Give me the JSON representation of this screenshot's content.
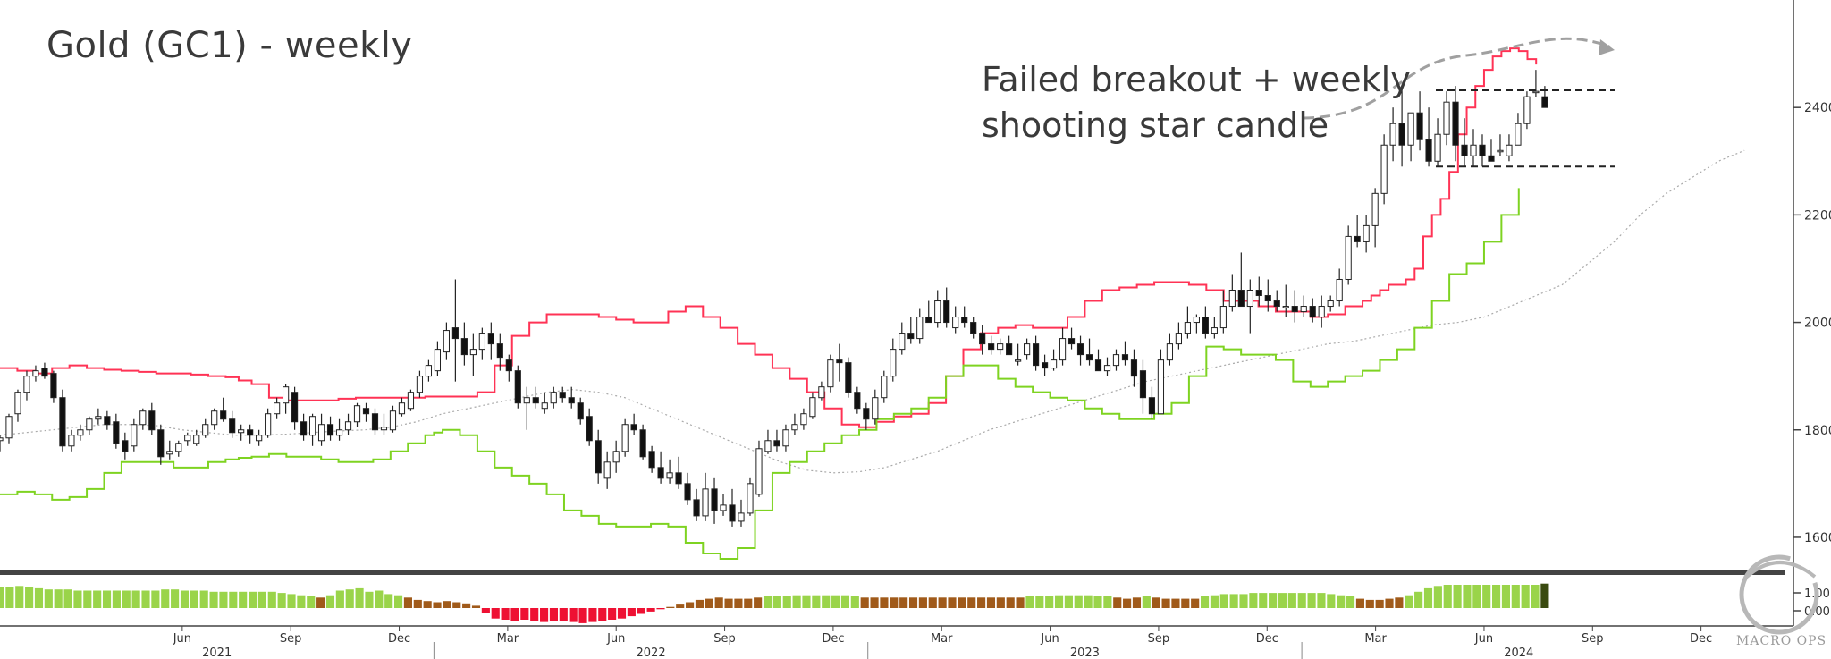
{
  "chart_data": {
    "type": "candlestick",
    "title": "Gold (GC1) - weekly",
    "annotation_lines": [
      "Failed breakout + weekly",
      "shooting star candle"
    ],
    "y_ticks": [
      1600,
      1800,
      2000,
      2200,
      2400
    ],
    "ylim": [
      1535,
      2600
    ],
    "x_ticks": [
      {
        "label": "Jun",
        "x": 4.42
      },
      {
        "label": "Sep",
        "x": 4.67
      },
      {
        "label": "Dec",
        "x": 4.92
      },
      {
        "label": "Mar",
        "x": 5.17
      },
      {
        "label": "Jun",
        "x": 5.42
      },
      {
        "label": "Sep",
        "x": 5.67
      },
      {
        "label": "Dec",
        "x": 5.92
      },
      {
        "label": "Mar",
        "x": 6.17
      },
      {
        "label": "Jun",
        "x": 6.42
      },
      {
        "label": "Sep",
        "x": 6.67
      },
      {
        "label": "Dec",
        "x": 6.92
      },
      {
        "label": "Mar",
        "x": 7.17
      },
      {
        "label": "Jun",
        "x": 7.42
      },
      {
        "label": "Sep",
        "x": 7.67
      },
      {
        "label": "Dec",
        "x": 7.92
      }
    ],
    "years": [
      {
        "label": "2021",
        "x": 4.5
      },
      {
        "label": "2022",
        "x": 5.5
      },
      {
        "label": "2023",
        "x": 6.5
      },
      {
        "label": "2024",
        "x": 7.5
      }
    ],
    "year_separators": [
      5.0,
      6.0,
      7.0
    ],
    "xlim": [
      4.0,
      8.1
    ],
    "candles_o": [
      1780,
      1785,
      1830,
      1870,
      1900,
      1915,
      1905,
      1860,
      1770,
      1790,
      1800,
      1820,
      1825,
      1815,
      1780,
      1770,
      1810,
      1835,
      1800,
      1755,
      1760,
      1780,
      1775,
      1790,
      1810,
      1835,
      1820,
      1795,
      1800,
      1780,
      1790,
      1830,
      1850,
      1870,
      1815,
      1790,
      1780,
      1810,
      1790,
      1800,
      1815,
      1840,
      1830,
      1800,
      1800,
      1830,
      1840,
      1870,
      1900,
      1910,
      1945,
      1990,
      1970,
      1940,
      1950,
      1980,
      1960,
      1930,
      1910,
      1850,
      1860,
      1840,
      1850,
      1870,
      1860,
      1850,
      1825,
      1780,
      1710,
      1740,
      1760,
      1810,
      1800,
      1760,
      1730,
      1710,
      1720,
      1700,
      1670,
      1640,
      1690,
      1650,
      1660,
      1630,
      1645,
      1680,
      1760,
      1780,
      1770,
      1800,
      1810,
      1825,
      1860,
      1880,
      1930,
      1925,
      1870,
      1840,
      1820,
      1860,
      1900,
      1950,
      1980,
      1970,
      2010,
      2000,
      2040,
      1990,
      2010,
      2000,
      1980,
      1960,
      1950,
      1960,
      1930,
      1940,
      1960,
      1925,
      1915,
      1930,
      1970,
      1960,
      1940,
      1930,
      1910,
      1920,
      1940,
      1930,
      1910,
      1860,
      1830,
      1930,
      1960,
      1980,
      2000,
      2010,
      1980,
      1990,
      2030,
      2060,
      2030,
      2060,
      2050,
      2040,
      2030,
      2030,
      2020,
      2030,
      2010,
      2030,
      2040,
      2080,
      2160,
      2150,
      2180,
      2240,
      2330,
      2370,
      2330,
      2390,
      2340,
      2300,
      2350,
      2410,
      2330,
      2310,
      2330,
      2310,
      2320,
      2310,
      2330,
      2370,
      2430,
      2420
    ],
    "candles_h": [
      1790,
      1830,
      1875,
      1910,
      1920,
      1925,
      1910,
      1875,
      1800,
      1810,
      1825,
      1840,
      1835,
      1830,
      1795,
      1820,
      1840,
      1850,
      1810,
      1780,
      1780,
      1795,
      1800,
      1820,
      1840,
      1860,
      1835,
      1810,
      1810,
      1800,
      1840,
      1860,
      1885,
      1880,
      1830,
      1830,
      1830,
      1825,
      1820,
      1830,
      1850,
      1850,
      1840,
      1830,
      1845,
      1860,
      1875,
      1910,
      1930,
      1965,
      2000,
      2080,
      2000,
      1980,
      1990,
      2000,
      1980,
      1940,
      1920,
      1880,
      1880,
      1870,
      1880,
      1880,
      1880,
      1860,
      1840,
      1800,
      1760,
      1780,
      1820,
      1830,
      1810,
      1770,
      1760,
      1745,
      1750,
      1720,
      1690,
      1720,
      1710,
      1680,
      1690,
      1670,
      1710,
      1780,
      1800,
      1800,
      1810,
      1830,
      1840,
      1870,
      1890,
      1940,
      1960,
      1935,
      1880,
      1850,
      1875,
      1910,
      1970,
      2000,
      2010,
      2025,
      2040,
      2060,
      2065,
      2030,
      2030,
      2010,
      1995,
      1975,
      1970,
      1975,
      1960,
      1970,
      1975,
      1940,
      1950,
      1990,
      1990,
      1975,
      1970,
      1950,
      1935,
      1950,
      1965,
      1950,
      1930,
      1880,
      1950,
      1980,
      2000,
      2030,
      2015,
      2030,
      2010,
      2060,
      2090,
      2130,
      2080,
      2085,
      2080,
      2060,
      2070,
      2060,
      2050,
      2045,
      2050,
      2050,
      2100,
      2180,
      2200,
      2200,
      2250,
      2350,
      2400,
      2440,
      2390,
      2430,
      2400,
      2380,
      2430,
      2440,
      2380,
      2360,
      2350,
      2340,
      2350,
      2350,
      2390,
      2430,
      2470,
      2440
    ],
    "candles_l": [
      1760,
      1775,
      1815,
      1855,
      1890,
      1895,
      1850,
      1760,
      1760,
      1780,
      1790,
      1810,
      1800,
      1765,
      1745,
      1760,
      1800,
      1790,
      1735,
      1745,
      1750,
      1770,
      1770,
      1785,
      1800,
      1815,
      1785,
      1780,
      1775,
      1770,
      1785,
      1820,
      1830,
      1800,
      1780,
      1770,
      1770,
      1780,
      1780,
      1790,
      1805,
      1815,
      1790,
      1790,
      1795,
      1825,
      1835,
      1860,
      1890,
      1900,
      1930,
      1890,
      1920,
      1900,
      1930,
      1930,
      1910,
      1890,
      1840,
      1800,
      1840,
      1830,
      1840,
      1850,
      1840,
      1810,
      1770,
      1700,
      1690,
      1720,
      1750,
      1790,
      1745,
      1720,
      1700,
      1700,
      1690,
      1660,
      1630,
      1630,
      1625,
      1640,
      1620,
      1620,
      1640,
      1675,
      1755,
      1760,
      1760,
      1790,
      1800,
      1820,
      1855,
      1870,
      1890,
      1860,
      1830,
      1800,
      1810,
      1850,
      1890,
      1940,
      1960,
      1960,
      2000,
      1990,
      1990,
      1980,
      1990,
      1970,
      1940,
      1940,
      1940,
      1950,
      1920,
      1930,
      1910,
      1900,
      1910,
      1920,
      1950,
      1920,
      1920,
      1910,
      1900,
      1910,
      1920,
      1880,
      1830,
      1820,
      1830,
      1920,
      1950,
      1970,
      1980,
      1970,
      1970,
      1980,
      2020,
      2030,
      1980,
      2030,
      2020,
      2020,
      2010,
      2000,
      2010,
      2000,
      1990,
      2020,
      2030,
      2070,
      2140,
      2130,
      2140,
      2220,
      2300,
      2290,
      2300,
      2320,
      2290,
      2290,
      2330,
      2300,
      2290,
      2290,
      2290,
      2300,
      2310,
      2300,
      2330,
      2360,
      2420,
      2400
    ],
    "candles_c": [
      1785,
      1825,
      1870,
      1900,
      1910,
      1900,
      1860,
      1770,
      1790,
      1800,
      1820,
      1825,
      1810,
      1775,
      1760,
      1810,
      1835,
      1800,
      1750,
      1760,
      1775,
      1790,
      1790,
      1810,
      1835,
      1820,
      1795,
      1800,
      1790,
      1790,
      1830,
      1850,
      1880,
      1815,
      1790,
      1825,
      1810,
      1790,
      1800,
      1815,
      1845,
      1830,
      1800,
      1805,
      1835,
      1850,
      1870,
      1900,
      1920,
      1950,
      1985,
      1970,
      1940,
      1950,
      1980,
      1960,
      1935,
      1910,
      1850,
      1860,
      1850,
      1850,
      1870,
      1860,
      1850,
      1820,
      1780,
      1720,
      1740,
      1760,
      1810,
      1800,
      1750,
      1730,
      1710,
      1720,
      1700,
      1670,
      1640,
      1690,
      1650,
      1660,
      1630,
      1645,
      1700,
      1765,
      1780,
      1770,
      1800,
      1810,
      1830,
      1860,
      1880,
      1930,
      1925,
      1870,
      1840,
      1820,
      1860,
      1900,
      1950,
      1980,
      1970,
      2010,
      2000,
      2040,
      2000,
      2010,
      2000,
      1980,
      1960,
      1950,
      1960,
      1940,
      1930,
      1960,
      1920,
      1915,
      1930,
      1970,
      1960,
      1940,
      1930,
      1910,
      1920,
      1940,
      1930,
      1900,
      1860,
      1830,
      1930,
      1960,
      1980,
      2000,
      2010,
      1980,
      1990,
      2030,
      2060,
      2030,
      2060,
      2050,
      2040,
      2030,
      2030,
      2020,
      2030,
      2010,
      2030,
      2040,
      2080,
      2160,
      2150,
      2180,
      2240,
      2330,
      2370,
      2330,
      2390,
      2340,
      2300,
      2350,
      2410,
      2330,
      2310,
      2330,
      2310,
      2300,
      2320,
      2330,
      2370,
      2420,
      2430,
      2400
    ],
    "upper_band": [
      1915,
      1910,
      1905,
      1915,
      1920,
      1915,
      1912,
      1910,
      1908,
      1905,
      1905,
      1903,
      1900,
      1898,
      1892,
      1885,
      1860,
      1855,
      1855,
      1855,
      1858,
      1860,
      1860,
      1860,
      1860,
      1862,
      1862,
      1862,
      1862,
      1870,
      1920,
      1975,
      2000,
      2015,
      2015,
      2015,
      2010,
      2005,
      2000,
      2000,
      2020,
      2030,
      2010,
      1990,
      1960,
      1940,
      1915,
      1895,
      1870,
      1840,
      1810,
      1805,
      1815,
      1825,
      1830,
      1850,
      1900,
      1950,
      1980,
      1990,
      1995,
      1990,
      1990,
      2010,
      2040,
      2060,
      2065,
      2070,
      2075,
      2075,
      2070,
      2060,
      2040,
      2040,
      2030,
      2020,
      2020,
      2010,
      2015,
      2030,
      2040,
      2050,
      2060,
      2070,
      2070,
      2080,
      2100,
      2160,
      2200,
      2230,
      2280,
      2350,
      2400,
      2440,
      2470,
      2495,
      2505,
      2510,
      2505,
      2490,
      2480
    ],
    "upper_band_x": [
      4.0,
      4.04,
      4.08,
      4.12,
      4.16,
      4.2,
      4.24,
      4.28,
      4.32,
      4.36,
      4.4,
      4.44,
      4.48,
      4.52,
      4.55,
      4.58,
      4.62,
      4.66,
      4.7,
      4.74,
      4.78,
      4.82,
      4.86,
      4.9,
      4.94,
      4.98,
      5.0,
      5.02,
      5.06,
      5.1,
      5.14,
      5.18,
      5.22,
      5.26,
      5.3,
      5.34,
      5.38,
      5.42,
      5.46,
      5.5,
      5.54,
      5.58,
      5.62,
      5.66,
      5.7,
      5.74,
      5.78,
      5.82,
      5.86,
      5.9,
      5.94,
      5.98,
      6.02,
      6.06,
      6.1,
      6.14,
      6.18,
      6.22,
      6.26,
      6.3,
      6.34,
      6.38,
      6.42,
      6.46,
      6.5,
      6.54,
      6.58,
      6.62,
      6.66,
      6.7,
      6.74,
      6.78,
      6.82,
      6.86,
      6.9,
      6.94,
      6.98,
      7.02,
      7.06,
      7.1,
      7.14,
      7.16,
      7.18,
      7.2,
      7.22,
      7.24,
      7.26,
      7.28,
      7.3,
      7.32,
      7.34,
      7.36,
      7.38,
      7.4,
      7.42,
      7.44,
      7.46,
      7.48,
      7.5,
      7.52,
      7.54
    ],
    "lower_band": [
      1680,
      1685,
      1680,
      1670,
      1675,
      1690,
      1720,
      1740,
      1740,
      1740,
      1730,
      1730,
      1740,
      1745,
      1748,
      1750,
      1755,
      1750,
      1750,
      1745,
      1740,
      1740,
      1745,
      1760,
      1775,
      1790,
      1795,
      1800,
      1790,
      1760,
      1730,
      1715,
      1700,
      1680,
      1650,
      1640,
      1625,
      1620,
      1620,
      1625,
      1620,
      1590,
      1570,
      1560,
      1580,
      1650,
      1720,
      1740,
      1760,
      1775,
      1790,
      1800,
      1820,
      1830,
      1840,
      1860,
      1900,
      1920,
      1920,
      1895,
      1880,
      1870,
      1860,
      1855,
      1840,
      1830,
      1820,
      1820,
      1830,
      1850,
      1900,
      1955,
      1950,
      1940,
      1940,
      1930,
      1890,
      1880,
      1890,
      1900,
      1910,
      1930,
      1950,
      1990,
      2040,
      2090,
      2110,
      2150,
      2200,
      2250
    ],
    "lower_band_x": [
      4.0,
      4.04,
      4.08,
      4.12,
      4.16,
      4.2,
      4.24,
      4.28,
      4.32,
      4.36,
      4.4,
      4.44,
      4.48,
      4.52,
      4.55,
      4.58,
      4.62,
      4.66,
      4.7,
      4.74,
      4.78,
      4.82,
      4.86,
      4.9,
      4.94,
      4.98,
      5.0,
      5.02,
      5.06,
      5.1,
      5.14,
      5.18,
      5.22,
      5.26,
      5.3,
      5.34,
      5.38,
      5.42,
      5.46,
      5.5,
      5.54,
      5.58,
      5.62,
      5.66,
      5.7,
      5.74,
      5.78,
      5.82,
      5.86,
      5.9,
      5.94,
      5.98,
      6.02,
      6.06,
      6.1,
      6.14,
      6.18,
      6.22,
      6.26,
      6.3,
      6.34,
      6.38,
      6.42,
      6.46,
      6.5,
      6.54,
      6.58,
      6.62,
      6.66,
      6.7,
      6.74,
      6.78,
      6.82,
      6.86,
      6.9,
      6.94,
      6.98,
      7.02,
      7.06,
      7.1,
      7.14,
      7.18,
      7.22,
      7.26,
      7.3,
      7.34,
      7.38,
      7.42,
      7.46,
      7.5
    ],
    "middle_band": [
      1790,
      1795,
      1800,
      1805,
      1810,
      1810,
      1808,
      1800,
      1795,
      1790,
      1790,
      1792,
      1795,
      1798,
      1800,
      1805,
      1815,
      1830,
      1840,
      1850,
      1860,
      1870,
      1875,
      1870,
      1860,
      1840,
      1820,
      1800,
      1780,
      1760,
      1740,
      1725,
      1720,
      1722,
      1730,
      1745,
      1760,
      1780,
      1800,
      1815,
      1830,
      1845,
      1860,
      1875,
      1890,
      1900,
      1910,
      1920,
      1930,
      1940,
      1950,
      1960,
      1965,
      1975,
      1985,
      1995,
      2000,
      2010,
      2030,
      2050,
      2070,
      2110,
      2150,
      2200,
      2240,
      2270,
      2300,
      2320
    ],
    "middle_band_x": [
      4.0,
      4.06,
      4.12,
      4.18,
      4.24,
      4.3,
      4.36,
      4.42,
      4.48,
      4.54,
      4.6,
      4.66,
      4.72,
      4.78,
      4.84,
      4.9,
      4.96,
      5.02,
      5.08,
      5.14,
      5.2,
      5.26,
      5.32,
      5.38,
      5.44,
      5.5,
      5.56,
      5.62,
      5.68,
      5.74,
      5.8,
      5.86,
      5.92,
      5.98,
      6.04,
      6.1,
      6.16,
      6.22,
      6.28,
      6.34,
      6.4,
      6.46,
      6.52,
      6.58,
      6.64,
      6.7,
      6.76,
      6.82,
      6.88,
      6.94,
      7.0,
      7.06,
      7.12,
      7.18,
      7.24,
      7.3,
      7.36,
      7.42,
      7.48,
      7.54,
      7.6,
      7.66,
      7.72,
      7.78,
      7.84,
      7.9,
      7.96,
      8.02
    ],
    "support_line": 2290,
    "resistance_line": 2432,
    "lower_pane_ticks": [
      "1.00",
      "0.00"
    ],
    "lower_pane_bars": [
      0.9,
      0.9,
      0.95,
      0.9,
      0.85,
      0.8,
      0.8,
      0.8,
      0.75,
      0.75,
      0.75,
      0.75,
      0.75,
      0.75,
      0.75,
      0.75,
      0.75,
      0.8,
      0.8,
      0.75,
      0.75,
      0.75,
      0.7,
      0.7,
      0.7,
      0.7,
      0.7,
      0.7,
      0.7,
      0.65,
      0.6,
      0.55,
      0.5,
      0.45,
      0.55,
      0.75,
      0.8,
      0.85,
      0.7,
      0.75,
      0.6,
      0.55,
      0.45,
      0.35,
      0.3,
      0.25,
      0.3,
      0.25,
      0.2,
      0.1,
      -0.2,
      -0.45,
      -0.5,
      -0.55,
      -0.5,
      -0.55,
      -0.6,
      -0.55,
      -0.55,
      -0.6,
      -0.65,
      -0.6,
      -0.55,
      -0.5,
      -0.45,
      -0.35,
      -0.25,
      -0.15,
      -0.05,
      0.05,
      0.15,
      0.25,
      0.35,
      0.4,
      0.45,
      0.4,
      0.4,
      0.4,
      0.45,
      0.5,
      0.5,
      0.5,
      0.55,
      0.55,
      0.55,
      0.55,
      0.55,
      0.55,
      0.5,
      0.45,
      0.45,
      0.45,
      0.45,
      0.45,
      0.45,
      0.45,
      0.45,
      0.45,
      0.45,
      0.45,
      0.45,
      0.45,
      0.45,
      0.45,
      0.45,
      0.45,
      0.5,
      0.5,
      0.5,
      0.55,
      0.55,
      0.55,
      0.55,
      0.5,
      0.5,
      0.45,
      0.4,
      0.45,
      0.5,
      0.45,
      0.4,
      0.4,
      0.4,
      0.4,
      0.5,
      0.55,
      0.6,
      0.6,
      0.6,
      0.65,
      0.65,
      0.65,
      0.65,
      0.65,
      0.65,
      0.65,
      0.65,
      0.6,
      0.55,
      0.5,
      0.4,
      0.35,
      0.35,
      0.4,
      0.45,
      0.55,
      0.7,
      0.85,
      0.95,
      1.0,
      1.0,
      1.0,
      1.0,
      1.0,
      1.0,
      1.0,
      1.0,
      1.0,
      1.0,
      1.05
    ],
    "colors": {
      "upper_band": "#ff3355",
      "lower_band": "#7ed321",
      "middle_band": "#aaaaaa",
      "bar_bull": "#9ad44a",
      "bar_weak": "#a05a1a",
      "bar_bear": "#ee1133",
      "bar_last": "#3a4a10",
      "axis": "#444444"
    }
  }
}
